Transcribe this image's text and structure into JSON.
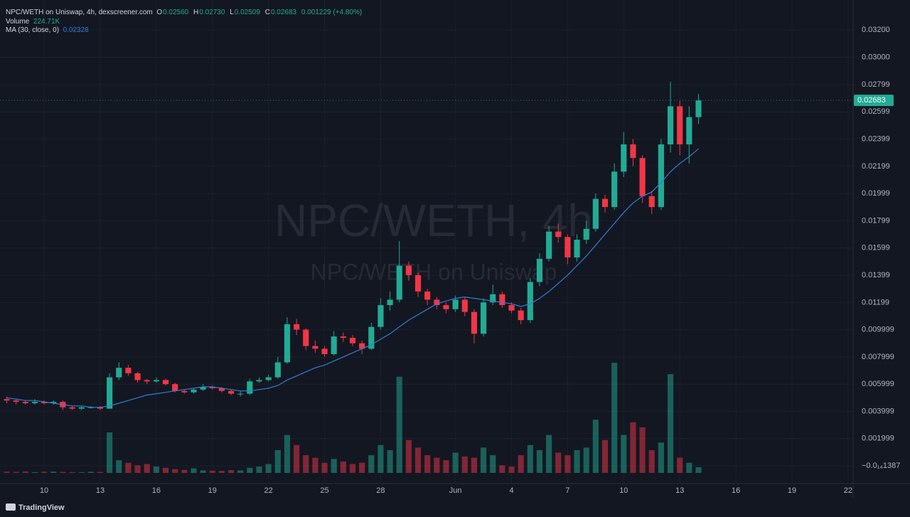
{
  "chart_data": {
    "type": "candlestick",
    "symbol": "NPC/WETH on Uniswap, 4h, dexscreener.com",
    "ohlc_legend": {
      "open_key": "O",
      "open": "0.02560",
      "high_key": "H",
      "high": "0.02730",
      "low_key": "L",
      "low": "0.02509",
      "close_key": "C",
      "close": "0.02683",
      "change": "0.001229 (+4.80%)"
    },
    "volume_name": "Volume",
    "volume_label": "224.71K",
    "watermark": "NPC/WETH, 4h",
    "watermark_sub": "NPC/WETH on Uniswap",
    "last_price_label": "0.02683",
    "brand": "TradingView",
    "up_color": "#22ab94",
    "down_color": "#f23645",
    "grid": true,
    "x": [
      8,
      8.5,
      9,
      9.5,
      10,
      10.5,
      11,
      11.5,
      12,
      12.5,
      13,
      13.5,
      14,
      14.5,
      15,
      15.5,
      16,
      16.5,
      17,
      17.5,
      18,
      18.5,
      19,
      19.5,
      20,
      20.5,
      21,
      21.5,
      22,
      22.5,
      23,
      23.5,
      24,
      24.5,
      25,
      25.5,
      26,
      26.5,
      27,
      27.5,
      28,
      28.5,
      29,
      29.5,
      30,
      30.5,
      31,
      31.5,
      32,
      32.5,
      33,
      33.5,
      34,
      34.5,
      35,
      35.5,
      36,
      36.5,
      37,
      37.5,
      38,
      38.5,
      39,
      39.5,
      40,
      40.5,
      41,
      41.5,
      42,
      42.5,
      43,
      43.5,
      44,
      44.5,
      45
    ],
    "open": [
      0.0049,
      0.0048,
      0.0047,
      0.0046,
      0.0047,
      0.0046,
      0.0047,
      0.0043,
      0.0042,
      0.0043,
      0.0043,
      0.0042,
      0.0065,
      0.0072,
      0.0068,
      0.0063,
      0.0062,
      0.0063,
      0.006,
      0.0055,
      0.0054,
      0.0056,
      0.0058,
      0.0057,
      0.0055,
      0.0053,
      0.0053,
      0.0062,
      0.0063,
      0.0065,
      0.0076,
      0.0104,
      0.01,
      0.0088,
      0.0086,
      0.0082,
      0.0095,
      0.0094,
      0.009,
      0.0086,
      0.0102,
      0.0118,
      0.0122,
      0.0147,
      0.014,
      0.0128,
      0.0122,
      0.0118,
      0.0115,
      0.0122,
      0.0113,
      0.0097,
      0.012,
      0.0126,
      0.0118,
      0.0114,
      0.0107,
      0.0135,
      0.0152,
      0.0172,
      0.0168,
      0.0153,
      0.0166,
      0.0174,
      0.0196,
      0.019,
      0.0216,
      0.0236,
      0.0226,
      0.0198,
      0.019,
      0.0236,
      0.0264,
      0.0236,
      0.0256
    ],
    "high": [
      0.0051,
      0.0049,
      0.0048,
      0.0049,
      0.0048,
      0.0048,
      0.0048,
      0.0044,
      0.0044,
      0.0044,
      0.0044,
      0.0068,
      0.0076,
      0.0074,
      0.0069,
      0.0064,
      0.0065,
      0.0064,
      0.0061,
      0.0056,
      0.0057,
      0.006,
      0.0059,
      0.0058,
      0.0056,
      0.0055,
      0.0064,
      0.0065,
      0.0067,
      0.008,
      0.0109,
      0.0108,
      0.0101,
      0.0092,
      0.0088,
      0.0099,
      0.0098,
      0.0096,
      0.0092,
      0.0105,
      0.0123,
      0.0128,
      0.0165,
      0.015,
      0.0142,
      0.013,
      0.0124,
      0.012,
      0.0125,
      0.0124,
      0.0115,
      0.0123,
      0.0133,
      0.0128,
      0.012,
      0.0116,
      0.0138,
      0.0156,
      0.0176,
      0.0178,
      0.017,
      0.017,
      0.018,
      0.02,
      0.0199,
      0.0222,
      0.0245,
      0.024,
      0.0228,
      0.0202,
      0.024,
      0.0282,
      0.0268,
      0.0264,
      0.0273
    ],
    "low": [
      0.0046,
      0.0045,
      0.0045,
      0.0045,
      0.0045,
      0.0045,
      0.0041,
      0.0041,
      0.0041,
      0.0042,
      0.0041,
      0.0042,
      0.0063,
      0.0066,
      0.0061,
      0.006,
      0.0061,
      0.0059,
      0.0054,
      0.0053,
      0.0053,
      0.0055,
      0.0056,
      0.0054,
      0.0052,
      0.0051,
      0.0052,
      0.0061,
      0.0062,
      0.0064,
      0.0075,
      0.0096,
      0.0085,
      0.0083,
      0.008,
      0.0081,
      0.0091,
      0.0088,
      0.0082,
      0.0085,
      0.01,
      0.0114,
      0.012,
      0.0136,
      0.0124,
      0.0118,
      0.0115,
      0.0112,
      0.0113,
      0.011,
      0.009,
      0.0095,
      0.0118,
      0.0116,
      0.0112,
      0.0104,
      0.0105,
      0.0132,
      0.015,
      0.0164,
      0.0148,
      0.015,
      0.0163,
      0.0172,
      0.0186,
      0.0188,
      0.0212,
      0.022,
      0.0193,
      0.0185,
      0.0188,
      0.023,
      0.0228,
      0.0222,
      0.02509
    ],
    "close": [
      0.0048,
      0.0047,
      0.0046,
      0.0047,
      0.0046,
      0.0047,
      0.0043,
      0.0042,
      0.0043,
      0.0043,
      0.0042,
      0.0065,
      0.0072,
      0.0068,
      0.0063,
      0.0062,
      0.0063,
      0.006,
      0.0055,
      0.0054,
      0.0056,
      0.0058,
      0.0057,
      0.0055,
      0.0053,
      0.0053,
      0.0062,
      0.0063,
      0.0065,
      0.0076,
      0.0104,
      0.01,
      0.0088,
      0.0086,
      0.0082,
      0.0095,
      0.0094,
      0.009,
      0.0086,
      0.0102,
      0.0118,
      0.0122,
      0.0147,
      0.014,
      0.0128,
      0.0122,
      0.0118,
      0.0115,
      0.0122,
      0.0113,
      0.0097,
      0.012,
      0.0126,
      0.0118,
      0.0114,
      0.0107,
      0.0135,
      0.0152,
      0.0172,
      0.0168,
      0.0153,
      0.0166,
      0.0174,
      0.0196,
      0.019,
      0.0216,
      0.0236,
      0.0226,
      0.0198,
      0.019,
      0.0236,
      0.0264,
      0.0236,
      0.0256,
      0.02683
    ],
    "volume": [
      50000,
      40000,
      60000,
      30000,
      45000,
      50000,
      40000,
      35000,
      30000,
      45000,
      40000,
      1600000,
      500000,
      400000,
      300000,
      350000,
      250000,
      200000,
      150000,
      120000,
      180000,
      100000,
      90000,
      80000,
      110000,
      100000,
      200000,
      250000,
      350000,
      900000,
      1500000,
      1100000,
      700000,
      600000,
      400000,
      550000,
      450000,
      350000,
      400000,
      700000,
      1100000,
      900000,
      3800000,
      1300000,
      1000000,
      700000,
      600000,
      500000,
      800000,
      650000,
      600000,
      1000000,
      700000,
      300000,
      250000,
      700000,
      1100000,
      900000,
      1500000,
      800000,
      700000,
      900000,
      1000000,
      2100000,
      1300000,
      4350000,
      1500000,
      2000000,
      1800000,
      900000,
      1200000,
      3900000,
      600000,
      400000,
      224710
    ],
    "ma": {
      "name": "MA (30, close, 0)",
      "label": "0.02328",
      "color": "#2f7ed8",
      "values": [
        0.005,
        0.0049,
        0.0048,
        0.0048,
        0.0047,
        0.0046,
        0.0045,
        0.0044,
        0.0044,
        0.0043,
        0.0043,
        0.0044,
        0.0046,
        0.0048,
        0.005,
        0.0052,
        0.0053,
        0.0054,
        0.0055,
        0.0056,
        0.0057,
        0.0058,
        0.0058,
        0.0057,
        0.0056,
        0.0055,
        0.0055,
        0.0056,
        0.0057,
        0.0059,
        0.0063,
        0.0066,
        0.0069,
        0.0072,
        0.0074,
        0.0077,
        0.008,
        0.0083,
        0.0086,
        0.0089,
        0.0093,
        0.0097,
        0.0102,
        0.0107,
        0.0111,
        0.0115,
        0.0119,
        0.0121,
        0.0123,
        0.0124,
        0.0123,
        0.0122,
        0.0121,
        0.012,
        0.0119,
        0.0117,
        0.0119,
        0.0123,
        0.0128,
        0.0134,
        0.014,
        0.0147,
        0.0154,
        0.0162,
        0.017,
        0.0178,
        0.0186,
        0.0193,
        0.0198,
        0.0201,
        0.0208,
        0.0216,
        0.0222,
        0.0227,
        0.02328
      ]
    },
    "xlim": [
      7.64,
      53.27
    ],
    "xticks": [
      10,
      13,
      16,
      19,
      22,
      25,
      28,
      {
        "value": 32,
        "label": "Jun"
      },
      {
        "value": 35,
        "label": "4"
      },
      {
        "value": 38,
        "label": "7"
      },
      {
        "value": 41,
        "label": "10"
      },
      {
        "value": 44,
        "label": "13"
      },
      {
        "value": 47,
        "label": "16"
      },
      {
        "value": 50,
        "label": "19"
      },
      {
        "value": 53,
        "label": "22"
      }
    ],
    "ylim": [
      -0.0013,
      0.0342
    ],
    "yticks": [
      {
        "value": 0.032,
        "label": "0.03200"
      },
      {
        "value": 0.03,
        "label": "0.03000"
      },
      {
        "value": 0.02799,
        "label": "0.02799"
      },
      {
        "value": 0.02599,
        "label": "0.02599"
      },
      {
        "value": 0.02399,
        "label": "0.02399"
      },
      {
        "value": 0.02199,
        "label": "0.02199"
      },
      {
        "value": 0.01999,
        "label": "0.01999"
      },
      {
        "value": 0.01799,
        "label": "0.01799"
      },
      {
        "value": 0.01599,
        "label": "0.01599"
      },
      {
        "value": 0.01399,
        "label": "0.01399"
      },
      {
        "value": 0.01199,
        "label": "0.01199"
      },
      {
        "value": 0.009999,
        "label": "0.009999"
      },
      {
        "value": 0.007999,
        "label": "0.007999"
      },
      {
        "value": 0.005999,
        "label": "0.005999"
      },
      {
        "value": 0.003999,
        "label": "0.003999"
      },
      {
        "value": 0.001999,
        "label": "0.001999"
      },
      {
        "value": -1.387e-15,
        "label": "−0.0₁₄1387"
      }
    ],
    "volume_lim": [
      0,
      10000000
    ]
  }
}
